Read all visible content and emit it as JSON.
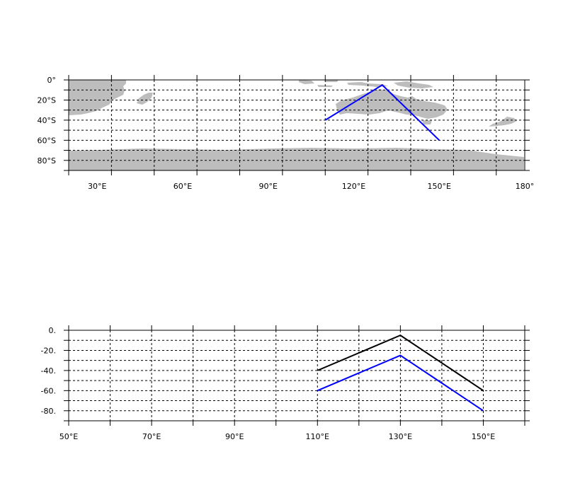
{
  "colors": {
    "land": "#bdbdbd",
    "route_blue": "#0000ff",
    "route_black": "#000000"
  },
  "chart_data": [
    {
      "type": "line",
      "projection": "map",
      "xlim": [
        20,
        180
      ],
      "ylim": [
        -90,
        0
      ],
      "xtick_values": [
        30,
        60,
        90,
        120,
        150,
        180
      ],
      "xtick_labels": [
        "30°E",
        "60°E",
        "90°E",
        "120°E",
        "150°E",
        "180°"
      ],
      "ytick_values": [
        0,
        -20,
        -40,
        -60,
        -80
      ],
      "ytick_labels": [
        "0°",
        "20°S",
        "40°S",
        "60°S",
        "80°S"
      ],
      "grid": true,
      "series": [
        {
          "color": "#0000ff",
          "x": [
            110,
            130,
            150
          ],
          "y": [
            -40,
            -5,
            -60
          ]
        }
      ]
    },
    {
      "type": "line",
      "xlim": [
        50,
        160
      ],
      "ylim": [
        -90,
        0
      ],
      "xtick_values": [
        50,
        70,
        90,
        110,
        130,
        150
      ],
      "xtick_labels": [
        "50°E",
        "70°E",
        "90°E",
        "110°E",
        "130°E",
        "150°E"
      ],
      "ytick_values": [
        0,
        -20,
        -40,
        -60,
        -80
      ],
      "ytick_labels": [
        "0.",
        "-20.",
        "-40.",
        "-60.",
        "-80."
      ],
      "grid": true,
      "series": [
        {
          "color": "#000000",
          "x": [
            110,
            130,
            150
          ],
          "y": [
            -40,
            -5,
            -60
          ]
        },
        {
          "color": "#0000ff",
          "x": [
            110,
            130,
            150
          ],
          "y": [
            -60,
            -25,
            -80
          ]
        }
      ]
    }
  ]
}
